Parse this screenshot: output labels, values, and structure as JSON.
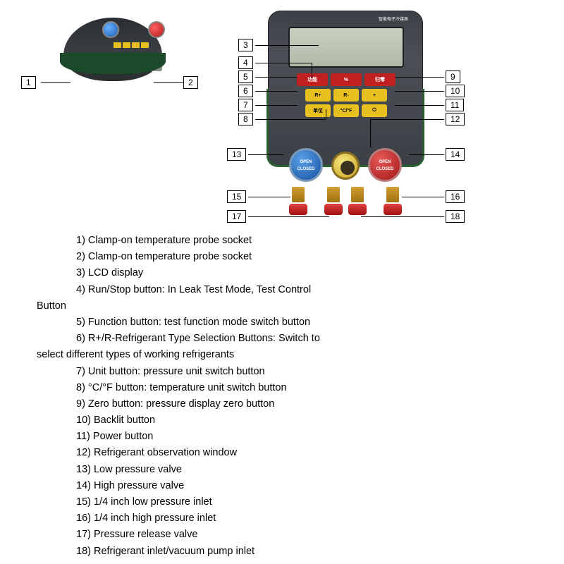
{
  "header_text": "智能电子冷媒表",
  "header_sub": "DIGITAL MANIFOLD PRESSURE GAUGE",
  "keys": {
    "r1a": "功能",
    "r1b": "%",
    "r1c": "归零",
    "r2a": "R+",
    "r2b": "R-",
    "r2c": "+",
    "r3a": "单位",
    "r3b": "°C/°F",
    "r3c": "⏻"
  },
  "valve_blue_t1": "OPEN",
  "valve_blue_t2": "CLOSED",
  "valve_red_t1": "OPEN",
  "valve_red_t2": "CLOSED",
  "callouts": {
    "c1": "1",
    "c2": "2",
    "c3": "3",
    "c4": "4",
    "c5": "5",
    "c6": "6",
    "c7": "7",
    "c8": "8",
    "c9": "9",
    "c10": "10",
    "c11": "11",
    "c12": "12",
    "c13": "13",
    "c14": "14",
    "c15": "15",
    "c16": "16",
    "c17": "17",
    "c18": "18"
  },
  "legend": [
    "1) Clamp-on temperature probe socket",
    "2) Clamp-on temperature probe socket",
    "3) LCD display",
    "4) Run/Stop button: In Leak Test Mode, Test Control",
    "Button",
    "5) Function button: test function mode switch button",
    "6) R+/R-Refrigerant Type Selection Buttons: Switch to",
    "select different types of working refrigerants",
    "7) Unit button: pressure unit switch button",
    "8) °C/°F button: temperature unit switch button",
    "9) Zero button: pressure display zero button",
    "10) Backlit button",
    "11) Power button",
    "12) Refrigerant observation window",
    "13) Low pressure valve",
    "14) High pressure valve",
    "15) 1/4 inch low pressure inlet",
    "16) 1/4 inch high pressure inlet",
    "17) Pressure release valve",
    "18) Refrigerant inlet/vacuum pump inlet"
  ],
  "legend_continuation_lines": [
    4,
    7
  ],
  "colors": {
    "body": "#3a4045",
    "green_trim": "#2a6030",
    "lcd": "#b8c0b0",
    "key_red": "#c02020",
    "key_yellow": "#e8c020",
    "valve_blue": "#1550a0",
    "valve_red": "#a01515",
    "brass": "#c8a020",
    "cap_red": "#e04040"
  }
}
